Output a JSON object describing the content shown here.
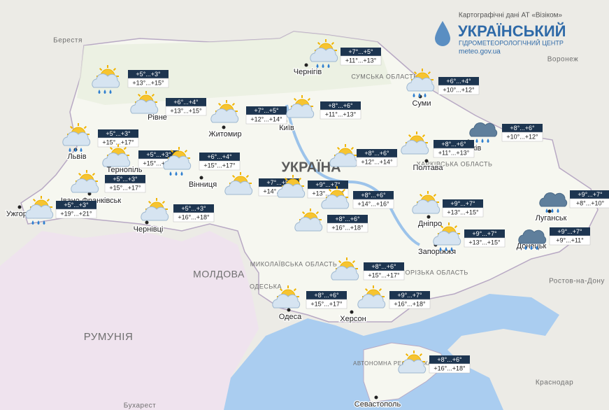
{
  "header": {
    "credit": "Картографічні дані АТ «Візіком»",
    "title": "УКРАЇНСЬКИЙ",
    "subtitle": "ГІДРОМЕТЕОРОЛОГІЧНИЙ ЦЕНТР",
    "site": "meteo.gov.ua"
  },
  "country": "УКРАЇНА",
  "labels": [
    "МОЛДОВА",
    "РУМУНІЯ",
    "Берестя",
    "Воронеж",
    "Ростов-на-Дону",
    "Краснодар",
    "Бухарест",
    "СУМСЬКА ОБЛАСТЬ",
    "ХАРКІВСЬКА ОБЛАСТЬ",
    "ЗАПОРІЗЬКА ОБЛАСТЬ",
    "МИКОЛАЇВСЬКА ОБЛАСТЬ",
    "ОДЕСЬКА",
    "АВТОНОМНА РЕСПУБЛІКА КРИМ"
  ],
  "cities": [
    "Чернігів",
    "Суми",
    "Житомир",
    "Київ",
    "Львів",
    "Вінниця",
    "Полтава",
    "Харків",
    "Луганськ",
    "Донецьк",
    "Дніпро",
    "Запоріжжя",
    "Ужгород",
    "Чернівці",
    "Івано-Франківськ",
    "Одеса",
    "Херсон",
    "Севастополь",
    "Рівне",
    "Тернопіль"
  ],
  "forecasts": [
    {
      "icon": "partly-rain",
      "night": "+5°...+3°",
      "day": "+13°...+15°"
    },
    {
      "icon": "partly-cloudy",
      "night": "+6°...+4°",
      "day": "+13°...+15°"
    },
    {
      "icon": "partly-cloudy",
      "night": "+7°...+5°",
      "day": "+12°...+14°"
    },
    {
      "icon": "partly-cloudy",
      "night": "+8°...+6°",
      "day": "+11°...+13°"
    },
    {
      "icon": "partly-rain",
      "night": "+7°...+5°",
      "day": "+11°...+13°"
    },
    {
      "icon": "partly-rain",
      "night": "+6°...+4°",
      "day": "+10°...+12°"
    },
    {
      "icon": "partly-rain",
      "night": "+5°...+3°",
      "day": "+15°...+17°"
    },
    {
      "icon": "partly-cloudy",
      "night": "+5°...+3°",
      "day": "+15°...+17°"
    },
    {
      "icon": "partly-rain",
      "night": "+6°...+4°",
      "day": "+15°...+17°"
    },
    {
      "icon": "partly-cloudy",
      "night": "+8°...+6°",
      "day": "+12°...+14°"
    },
    {
      "icon": "partly-cloudy",
      "night": "+8°...+6°",
      "day": "+11°...+13°"
    },
    {
      "icon": "cloud-rain",
      "night": "+8°...+6°",
      "day": "+10°...+12°"
    },
    {
      "icon": "partly-cloudy",
      "night": "+5°...+3°",
      "day": "+15°...+17°"
    },
    {
      "icon": "partly-rain",
      "night": "+5°...+3°",
      "day": "+19°...+21°"
    },
    {
      "icon": "partly-cloudy",
      "night": "+5°...+3°",
      "day": "+16°...+18°"
    },
    {
      "icon": "partly-cloudy",
      "night": "+7°...+5°",
      "day": "+14°...+16°"
    },
    {
      "icon": "partly-cloudy",
      "night": "+9°...+7°",
      "day": "+13°...+15°"
    },
    {
      "icon": "partly-cloudy",
      "night": "+8°...+6°",
      "day": "+14°...+16°"
    },
    {
      "icon": "partly-cloudy",
      "night": "+8°...+6°",
      "day": "+16°...+18°"
    },
    {
      "icon": "partly-cloudy",
      "night": "+9°...+7°",
      "day": "+13°...+15°"
    },
    {
      "icon": "partly-rain",
      "night": "+9°...+7°",
      "day": "+13°...+15°"
    },
    {
      "icon": "cloud-rain",
      "night": "+9°...+7°",
      "day": "+8°...+10°"
    },
    {
      "icon": "cloud-rain",
      "night": "+9°...+7°",
      "day": "+9°...+11°"
    },
    {
      "icon": "partly-cloudy",
      "night": "+8°...+6°",
      "day": "+15°...+17°"
    },
    {
      "icon": "partly-cloudy",
      "night": "+8°...+6°",
      "day": "+15°...+17°"
    },
    {
      "icon": "partly-cloudy",
      "night": "+9°...+7°",
      "day": "+16°...+18°"
    },
    {
      "icon": "partly-cloudy",
      "night": "+8°...+6°",
      "day": "+16°...+18°"
    }
  ]
}
